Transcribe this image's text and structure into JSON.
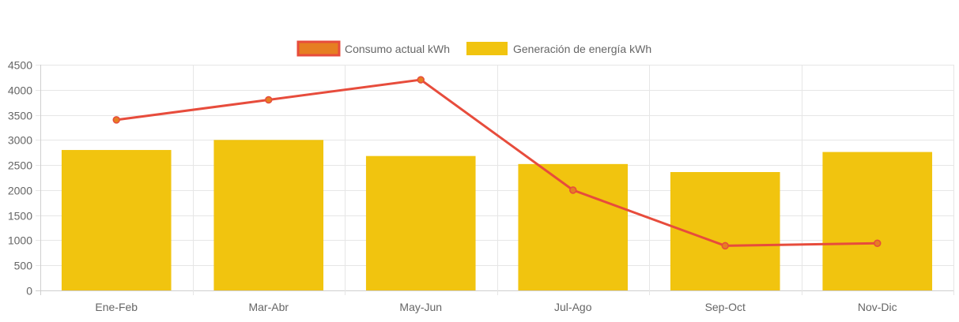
{
  "chart_data": {
    "type": "bar",
    "title": "",
    "xlabel": "",
    "ylabel": "",
    "categories": [
      "Ene-Feb",
      "Mar-Abr",
      "May-Jun",
      "Jul-Ago",
      "Sep-Oct",
      "Nov-Dic"
    ],
    "ylim": [
      0,
      4500
    ],
    "yticks": [
      "0",
      "500",
      "1000",
      "1500",
      "2000",
      "2500",
      "3000",
      "3500",
      "4000",
      "4500"
    ],
    "grid": true,
    "legend_position": "top-center",
    "series": [
      {
        "name": "Consumo actual kWh",
        "type": "line",
        "color": "#e74c3c",
        "fill_color": "#e67e22",
        "values": [
          3400,
          3800,
          4200,
          2000,
          890,
          940
        ]
      },
      {
        "name": "Generación de energía kWh",
        "type": "bar",
        "color": "#f1c40f",
        "values": [
          2800,
          3000,
          2680,
          2520,
          2360,
          2760
        ]
      }
    ]
  }
}
